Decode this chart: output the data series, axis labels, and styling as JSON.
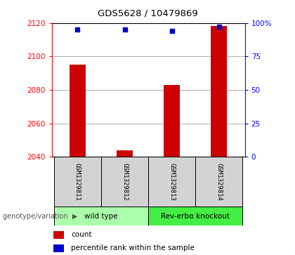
{
  "title": "GDS5628 / 10479869",
  "samples": [
    "GSM1329811",
    "GSM1329812",
    "GSM1329813",
    "GSM1329814"
  ],
  "count_values": [
    2095,
    2044,
    2083,
    2118
  ],
  "percentile_values": [
    95,
    95,
    94,
    97
  ],
  "ylim_left": [
    2040,
    2120
  ],
  "ylim_right": [
    0,
    100
  ],
  "yticks_left": [
    2040,
    2060,
    2080,
    2100,
    2120
  ],
  "yticks_right": [
    0,
    25,
    50,
    75,
    100
  ],
  "ytick_labels_right": [
    "0",
    "25",
    "50",
    "75",
    "100%"
  ],
  "bar_color": "#cc0000",
  "dot_color": "#0000cc",
  "bar_width": 0.35,
  "groups": [
    {
      "label": "wild type",
      "indices": [
        0,
        1
      ],
      "color": "#aaffaa"
    },
    {
      "label": "Rev-erbα knockout",
      "indices": [
        2,
        3
      ],
      "color": "#44ee44"
    }
  ],
  "legend_count_color": "#cc0000",
  "legend_dot_color": "#0000cc",
  "xlabel_annotation": "genotype/variation",
  "background_color": "#ffffff"
}
